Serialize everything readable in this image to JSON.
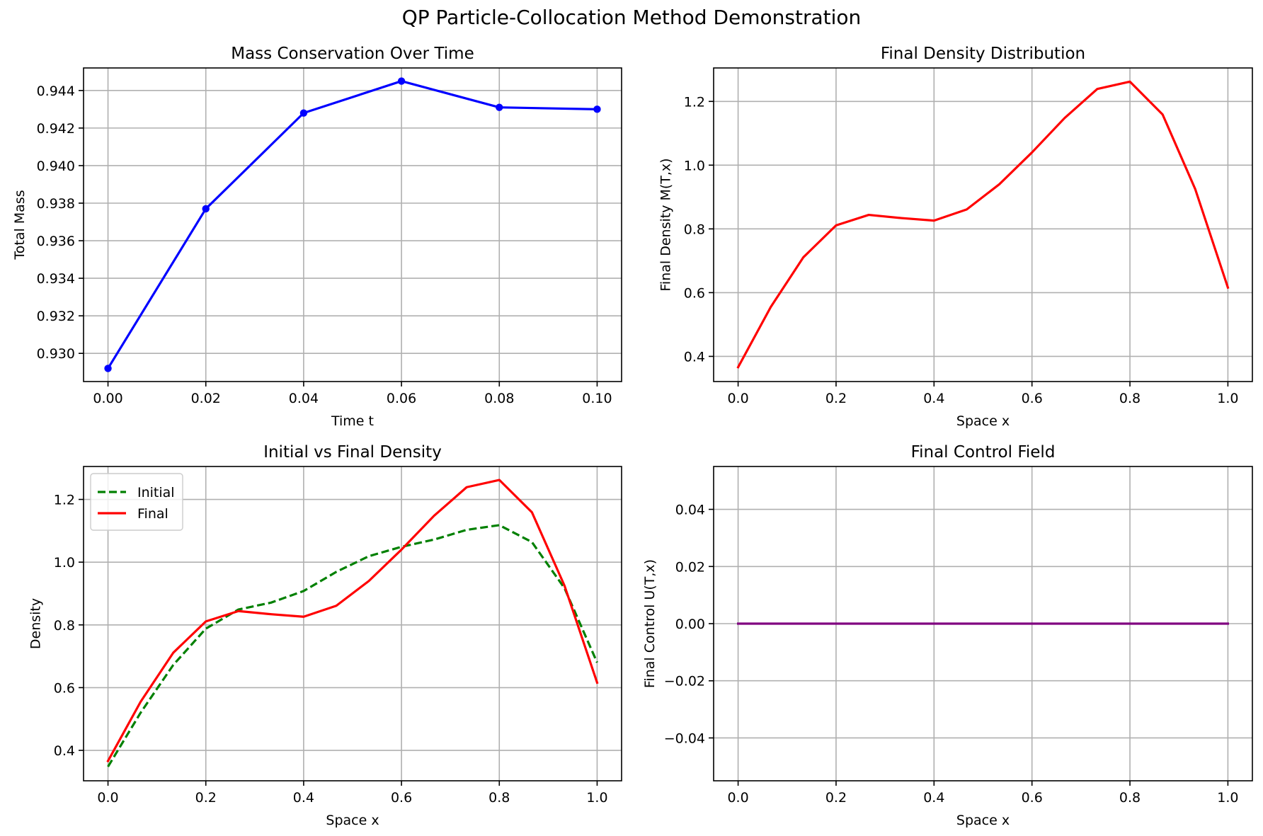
{
  "figure": {
    "title": "QP Particle-Collocation Method Demonstration"
  },
  "chart_data": [
    {
      "type": "line",
      "title": "Mass Conservation Over Time",
      "xlabel": "Time t",
      "ylabel": "Total Mass",
      "xlim": [
        -0.005,
        0.105
      ],
      "ylim": [
        0.9285,
        0.9452
      ],
      "xticks": [
        0.0,
        0.02,
        0.04,
        0.06,
        0.08,
        0.1
      ],
      "xtick_labels": [
        "0.00",
        "0.02",
        "0.04",
        "0.06",
        "0.08",
        "0.10"
      ],
      "yticks": [
        0.93,
        0.932,
        0.934,
        0.936,
        0.938,
        0.94,
        0.942,
        0.944
      ],
      "ytick_labels": [
        "0.930",
        "0.932",
        "0.934",
        "0.936",
        "0.938",
        "0.940",
        "0.942",
        "0.944"
      ],
      "grid": true,
      "series": [
        {
          "color": "#0000ff",
          "style": "solid",
          "marker": "circle",
          "x": [
            0.0,
            0.02,
            0.04,
            0.06,
            0.08,
            0.1
          ],
          "y": [
            0.9292,
            0.9377,
            0.9428,
            0.9445,
            0.9431,
            0.943
          ]
        }
      ]
    },
    {
      "type": "line",
      "title": "Final Density Distribution",
      "xlabel": "Space x",
      "ylabel": "Final Density M(T,x)",
      "xlim": [
        -0.05,
        1.05
      ],
      "ylim": [
        0.321,
        1.305
      ],
      "xticks": [
        0.0,
        0.2,
        0.4,
        0.6,
        0.8,
        1.0
      ],
      "xtick_labels": [
        "0.0",
        "0.2",
        "0.4",
        "0.6",
        "0.8",
        "1.0"
      ],
      "yticks": [
        0.4,
        0.6,
        0.8,
        1.0,
        1.2
      ],
      "ytick_labels": [
        "0.4",
        "0.6",
        "0.8",
        "1.0",
        "1.2"
      ],
      "grid": true,
      "series": [
        {
          "color": "#ff0000",
          "style": "solid",
          "x": [
            0.0,
            0.0667,
            0.1333,
            0.2,
            0.2667,
            0.3333,
            0.4,
            0.4667,
            0.5333,
            0.6,
            0.6667,
            0.7333,
            0.8,
            0.8667,
            0.9333,
            1.0
          ],
          "y": [
            0.366,
            0.555,
            0.711,
            0.811,
            0.844,
            0.834,
            0.826,
            0.861,
            0.94,
            1.04,
            1.148,
            1.239,
            1.262,
            1.159,
            0.925,
            0.616
          ]
        }
      ]
    },
    {
      "type": "line",
      "title": "Initial vs Final Density",
      "xlabel": "Space x",
      "ylabel": "Density",
      "xlim": [
        -0.05,
        1.05
      ],
      "ylim": [
        0.303,
        1.305
      ],
      "xticks": [
        0.0,
        0.2,
        0.4,
        0.6,
        0.8,
        1.0
      ],
      "xtick_labels": [
        "0.0",
        "0.2",
        "0.4",
        "0.6",
        "0.8",
        "1.0"
      ],
      "yticks": [
        0.4,
        0.6,
        0.8,
        1.0,
        1.2
      ],
      "ytick_labels": [
        "0.4",
        "0.6",
        "0.8",
        "1.0",
        "1.2"
      ],
      "grid": true,
      "legend": "top-left",
      "series": [
        {
          "name": "Initial",
          "color": "#008000",
          "style": "dashed",
          "x": [
            0.0,
            0.0667,
            0.1333,
            0.2,
            0.2667,
            0.3333,
            0.4,
            0.4667,
            0.5333,
            0.6,
            0.6667,
            0.7333,
            0.8,
            0.8667,
            0.9333,
            1.0
          ],
          "y": [
            0.348,
            0.52,
            0.672,
            0.788,
            0.849,
            0.871,
            0.908,
            0.969,
            1.019,
            1.049,
            1.072,
            1.103,
            1.118,
            1.064,
            0.917,
            0.68
          ]
        },
        {
          "name": "Final",
          "color": "#ff0000",
          "style": "solid",
          "x": [
            0.0,
            0.0667,
            0.1333,
            0.2,
            0.2667,
            0.3333,
            0.4,
            0.4667,
            0.5333,
            0.6,
            0.6667,
            0.7333,
            0.8,
            0.8667,
            0.9333,
            1.0
          ],
          "y": [
            0.366,
            0.555,
            0.711,
            0.811,
            0.844,
            0.834,
            0.826,
            0.861,
            0.94,
            1.04,
            1.148,
            1.239,
            1.262,
            1.159,
            0.925,
            0.616
          ]
        }
      ]
    },
    {
      "type": "line",
      "title": "Final Control Field",
      "xlabel": "Space x",
      "ylabel": "Final Control U(T,x)",
      "xlim": [
        -0.05,
        1.05
      ],
      "ylim": [
        -0.055,
        0.055
      ],
      "xticks": [
        0.0,
        0.2,
        0.4,
        0.6,
        0.8,
        1.0
      ],
      "xtick_labels": [
        "0.0",
        "0.2",
        "0.4",
        "0.6",
        "0.8",
        "1.0"
      ],
      "yticks": [
        -0.04,
        -0.02,
        0.0,
        0.02,
        0.04
      ],
      "ytick_labels": [
        "−0.04",
        "−0.02",
        "0.00",
        "0.02",
        "0.04"
      ],
      "grid": true,
      "series": [
        {
          "color": "#800080",
          "style": "solid",
          "x": [
            0.0,
            0.0667,
            0.1333,
            0.2,
            0.2667,
            0.3333,
            0.4,
            0.4667,
            0.5333,
            0.6,
            0.6667,
            0.7333,
            0.8,
            0.8667,
            0.9333,
            1.0
          ],
          "y": [
            0,
            0,
            0,
            0,
            0,
            0,
            0,
            0,
            0,
            0,
            0,
            0,
            0,
            0,
            0,
            0
          ]
        }
      ]
    }
  ]
}
